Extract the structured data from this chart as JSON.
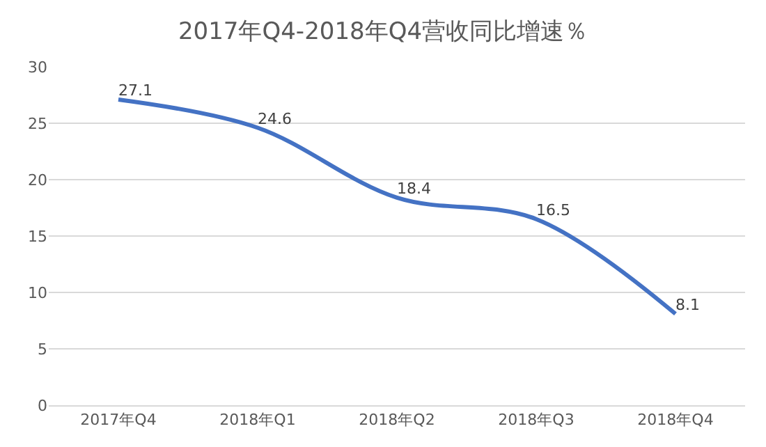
{
  "chart_data": {
    "type": "line",
    "title": "2017年Q4-2018年Q4营收同比增速％",
    "categories": [
      "2017年Q4",
      "2018年Q1",
      "2018年Q2",
      "2018年Q3",
      "2018年Q4"
    ],
    "series": [
      {
        "color": "#4472c4",
        "values": [
          27.1,
          24.6,
          18.4,
          16.5,
          8.1
        ]
      }
    ],
    "ylim": [
      0,
      30
    ],
    "yticks": [
      0,
      5,
      10,
      15,
      20,
      25,
      30
    ],
    "grid": "y",
    "data_labels": true,
    "marker": "none",
    "line_style": "solid"
  }
}
